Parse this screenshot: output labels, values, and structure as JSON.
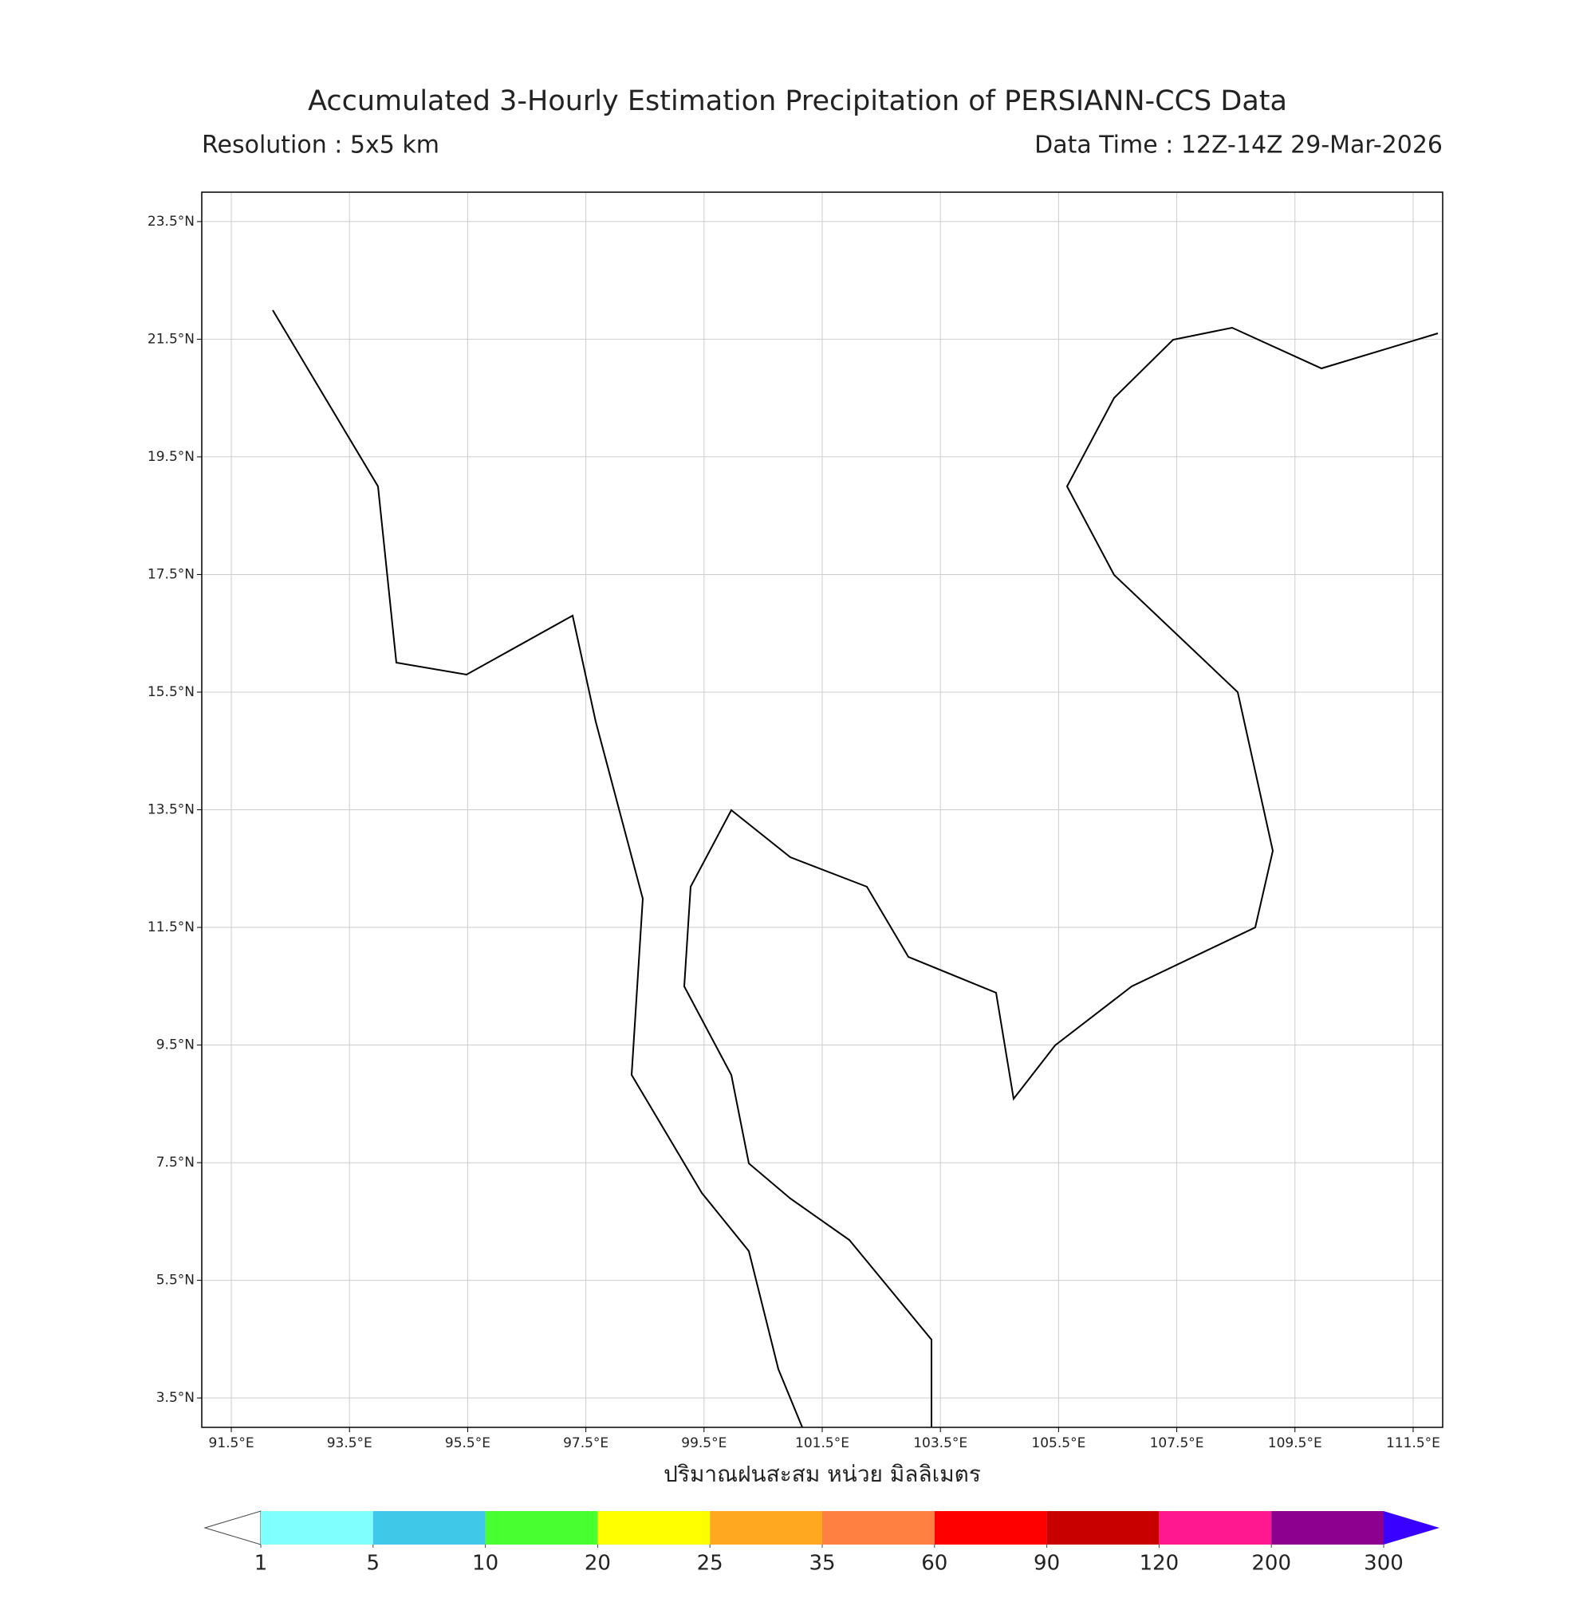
{
  "title": "Accumulated 3-Hourly Estimation Precipitation of PERSIANN-CCS Data",
  "resolution": "Resolution : 5x5 km",
  "data_time": "Data Time : 12Z-14Z 29-Mar-2026",
  "axis_label": "ปริมาณฝนสะสม หน่วย มิลลิเมตร",
  "xlim": [
    91,
    112
  ],
  "ylim": [
    3,
    24
  ],
  "grid": true,
  "xticks": [
    {
      "value": 91.5,
      "label": "91.5°E"
    },
    {
      "value": 93.5,
      "label": "93.5°E"
    },
    {
      "value": 95.5,
      "label": "95.5°E"
    },
    {
      "value": 97.5,
      "label": "97.5°E"
    },
    {
      "value": 99.5,
      "label": "99.5°E"
    },
    {
      "value": 101.5,
      "label": "101.5°E"
    },
    {
      "value": 103.5,
      "label": "103.5°E"
    },
    {
      "value": 105.5,
      "label": "105.5°E"
    },
    {
      "value": 107.5,
      "label": "107.5°E"
    },
    {
      "value": 109.5,
      "label": "109.5°E"
    },
    {
      "value": 111.5,
      "label": "111.5°E"
    }
  ],
  "yticks": [
    {
      "value": 23.5,
      "label": "23.5°N"
    },
    {
      "value": 21.5,
      "label": "21.5°N"
    },
    {
      "value": 19.5,
      "label": "19.5°N"
    },
    {
      "value": 17.5,
      "label": "17.5°N"
    },
    {
      "value": 15.5,
      "label": "15.5°N"
    },
    {
      "value": 13.5,
      "label": "13.5°N"
    },
    {
      "value": 11.5,
      "label": "11.5°N"
    },
    {
      "value": 9.5,
      "label": "9.5°N"
    },
    {
      "value": 7.5,
      "label": "7.5°N"
    },
    {
      "value": 5.5,
      "label": "5.5°N"
    },
    {
      "value": 3.5,
      "label": "3.5°N"
    }
  ],
  "colorbar": {
    "levels": [
      1,
      5,
      10,
      20,
      25,
      35,
      60,
      90,
      120,
      200,
      300
    ],
    "colors": [
      "#80ffff",
      "#40c8e8",
      "#48ff30",
      "#ffff00",
      "#ffa820",
      "#ff8040",
      "#ff0000",
      "#c80000",
      "#ff1890",
      "#8c0090"
    ],
    "under_color": "#ffffff",
    "over_color": "#3a00ff"
  }
}
